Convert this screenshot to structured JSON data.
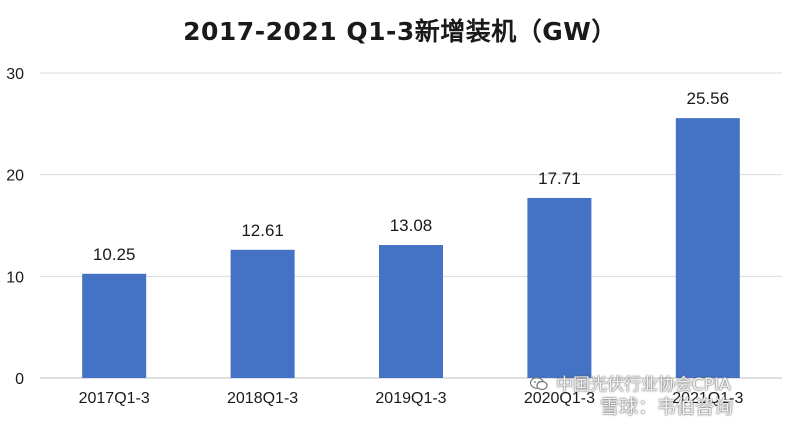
{
  "chart_data": {
    "type": "bar",
    "title": "2017-2021 Q1-3新增装机（GW）",
    "categories": [
      "2017Q1-3",
      "2018Q1-3",
      "2019Q1-3",
      "2020Q1-3",
      "2021Q1-3"
    ],
    "values": [
      10.25,
      12.61,
      13.08,
      17.71,
      25.56
    ],
    "value_labels": [
      "10.25",
      "12.61",
      "13.08",
      "17.71",
      "25.56"
    ],
    "ylim": [
      0,
      30
    ],
    "yticks": [
      0,
      10,
      20,
      30
    ],
    "ytick_labels": [
      "0",
      "10",
      "20",
      "30"
    ],
    "xlabel": "",
    "ylabel": "",
    "grid": true,
    "bar_color": "#4472C4",
    "grid_color": "#d9d9d9"
  },
  "watermark": {
    "line1": "中国光伏行业协会CPIA",
    "line2": "雪球：韦伯咨询",
    "wechat_icon": "wechat-icon"
  }
}
